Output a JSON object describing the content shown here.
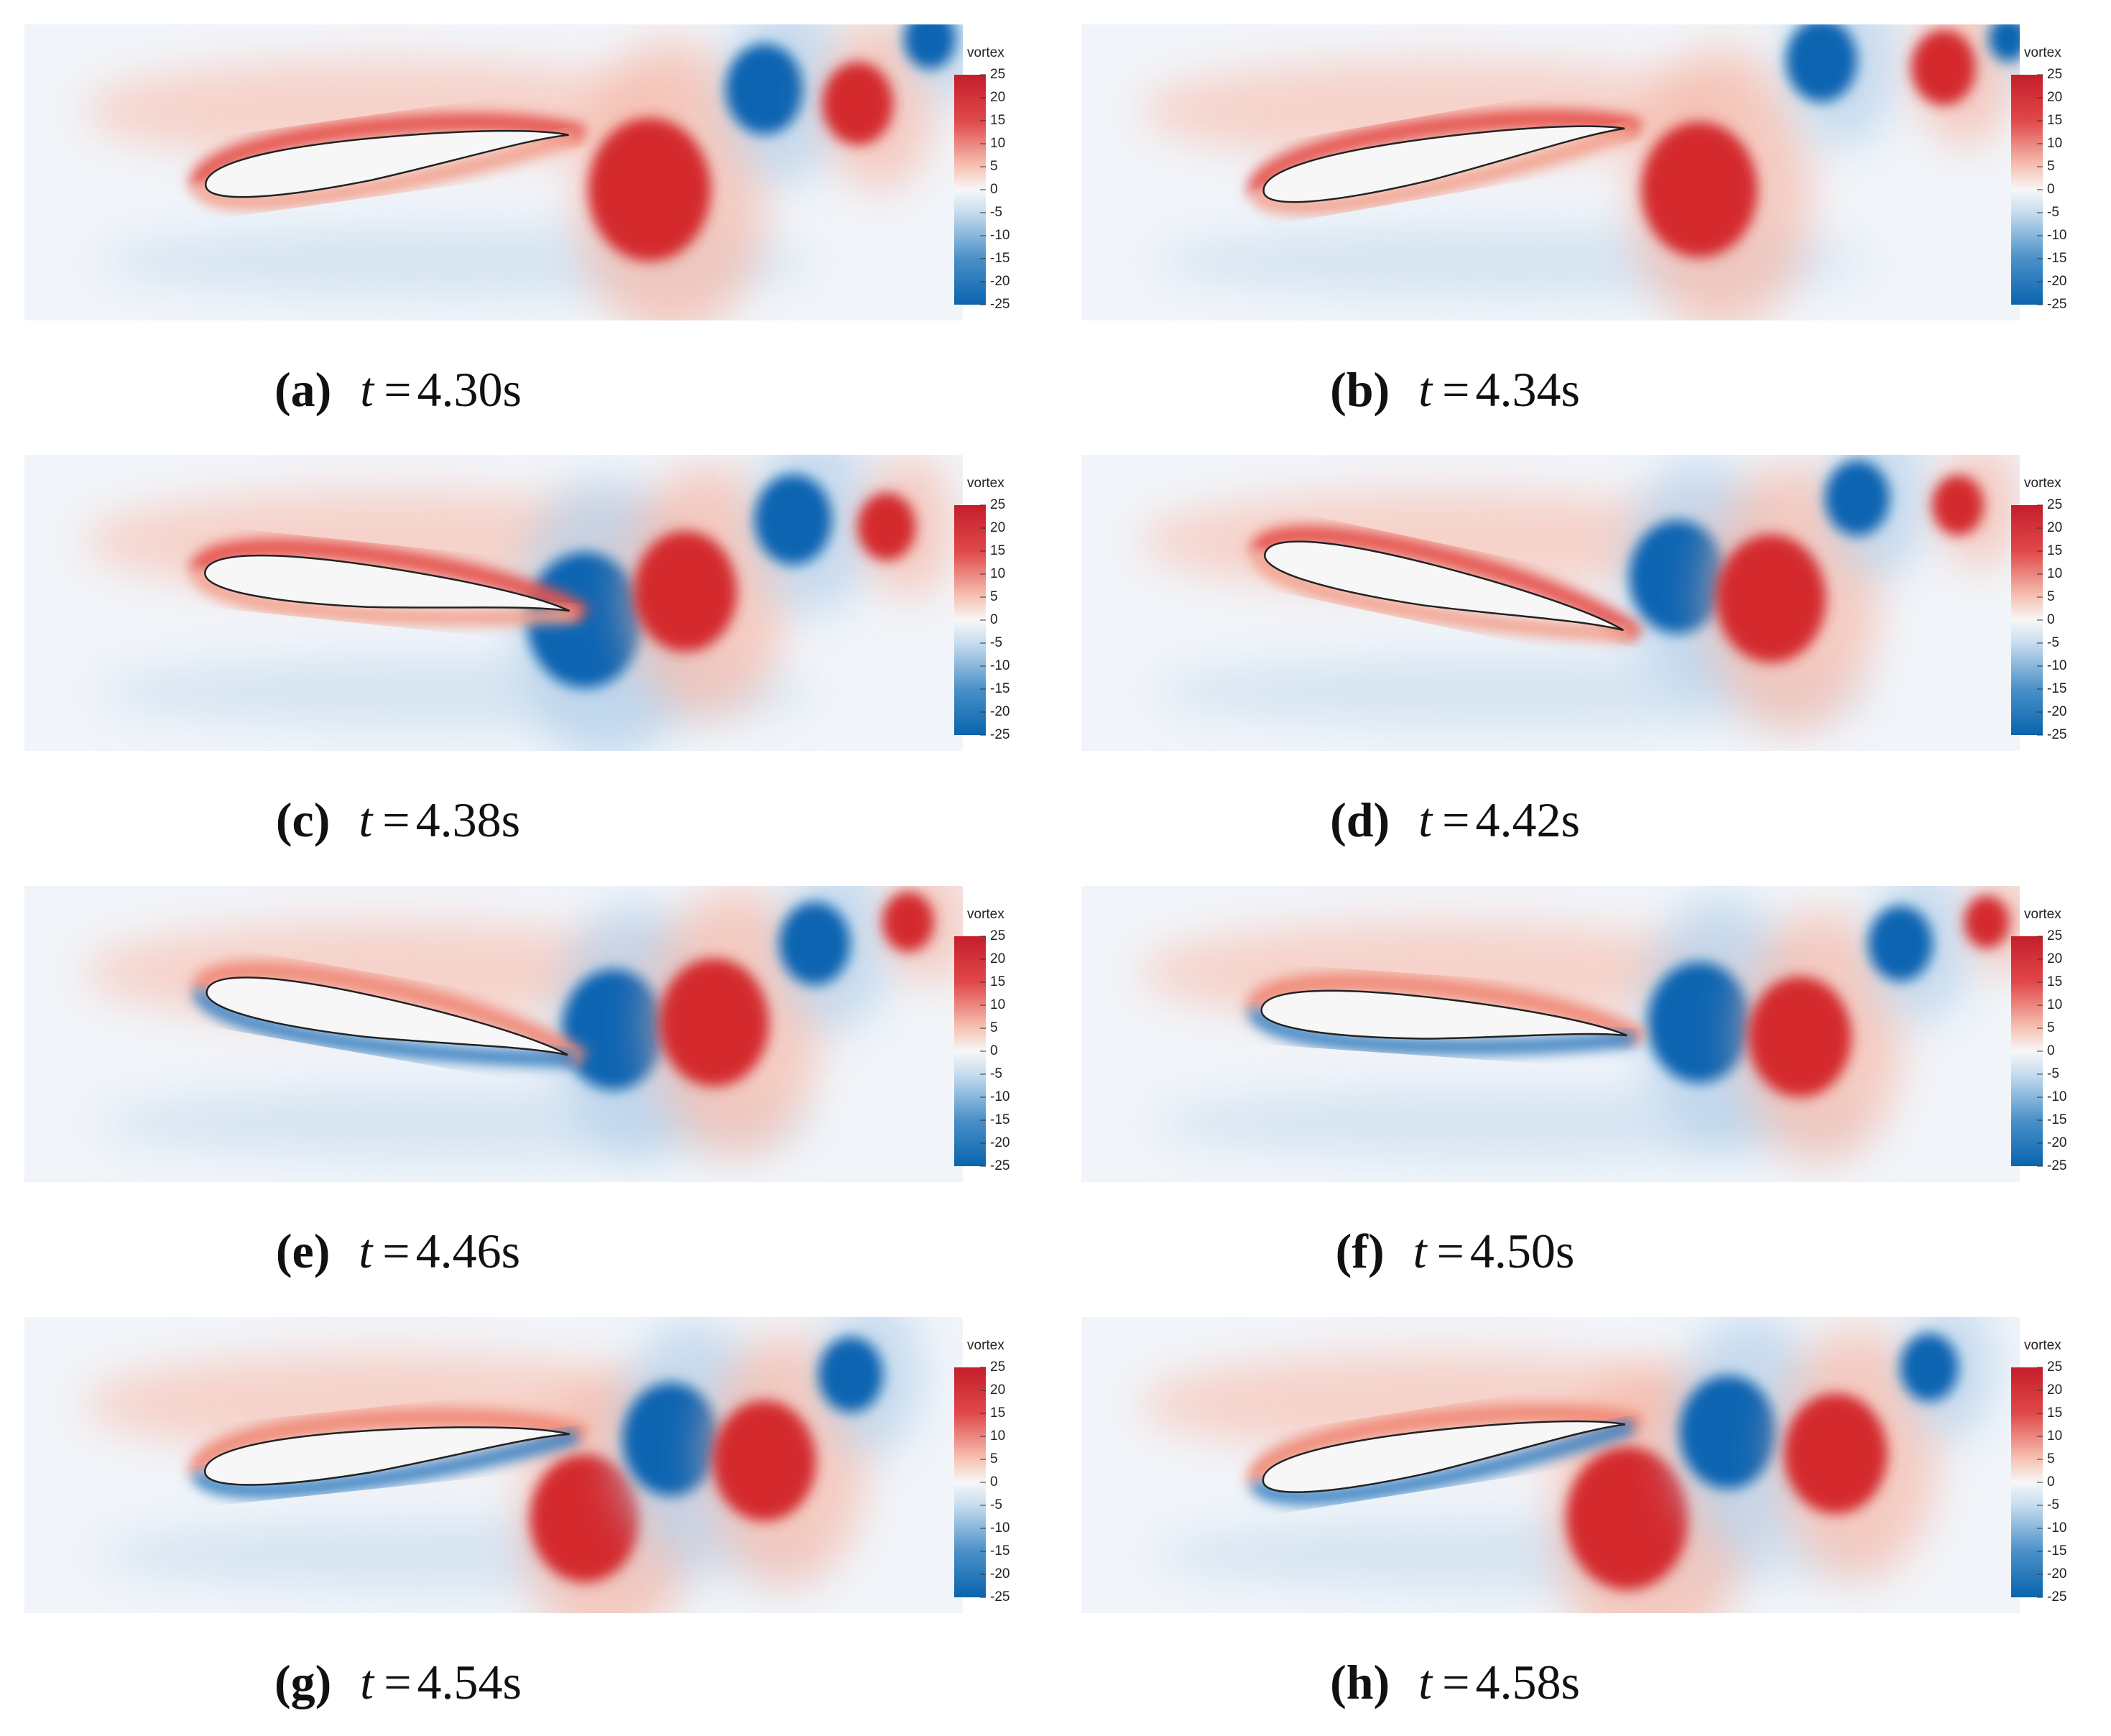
{
  "colorbar": {
    "title": "vortex",
    "ticks": [
      25,
      20,
      15,
      10,
      5,
      0,
      -5,
      -10,
      -15,
      -20,
      -25
    ]
  },
  "symbol": "t",
  "equals": "=",
  "panels": [
    {
      "label": "(a)",
      "time": "4.30s"
    },
    {
      "label": "(b)",
      "time": "4.34s"
    },
    {
      "label": "(c)",
      "time": "4.38s"
    },
    {
      "label": "(d)",
      "time": "4.42s"
    },
    {
      "label": "(e)",
      "time": "4.46s"
    },
    {
      "label": "(f)",
      "time": "4.50s"
    },
    {
      "label": "(g)",
      "time": "4.54s"
    },
    {
      "label": "(h)",
      "time": "4.58s"
    }
  ]
}
